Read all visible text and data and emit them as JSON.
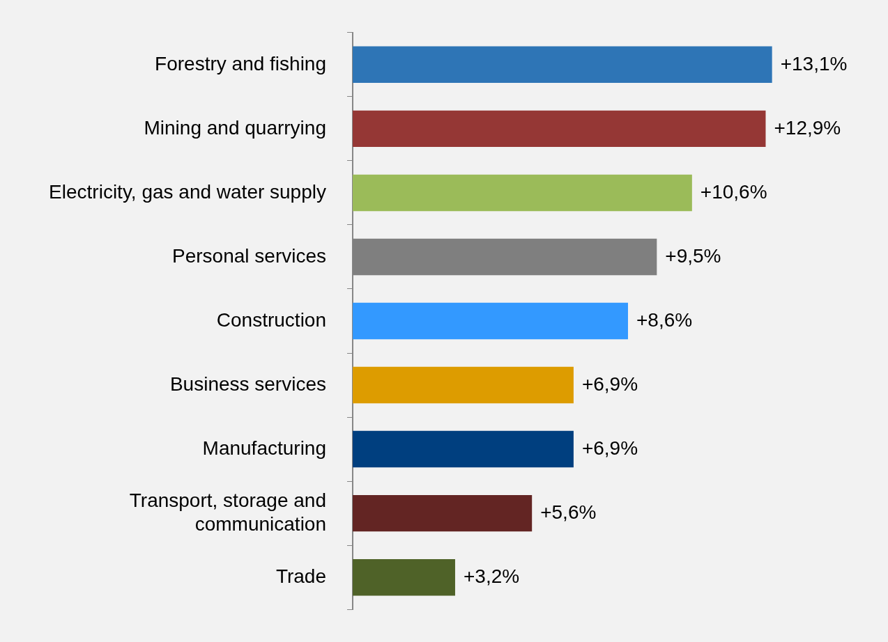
{
  "chart_data": {
    "type": "bar",
    "orientation": "horizontal",
    "categories": [
      "Forestry and fishing",
      "Mining and quarrying",
      "Electricity, gas and water supply",
      "Personal services",
      "Construction",
      "Business services",
      "Manufacturing",
      "Transport, storage and communication",
      "Trade"
    ],
    "values": [
      13.1,
      12.9,
      10.6,
      9.5,
      8.6,
      6.9,
      6.9,
      5.6,
      3.2
    ],
    "colors": [
      "#2e75b6",
      "#953735",
      "#9bbb59",
      "#7f7f7f",
      "#3399ff",
      "#dd9c00",
      "#003f7f",
      "#632523",
      "#4f6228"
    ],
    "value_labels": [
      "+13,1%",
      "+12,9%",
      "+10,6%",
      "+9,5%",
      "+8,6%",
      "+6,9%",
      "+6,9%",
      "+5,6%",
      "+3,2%"
    ]
  }
}
